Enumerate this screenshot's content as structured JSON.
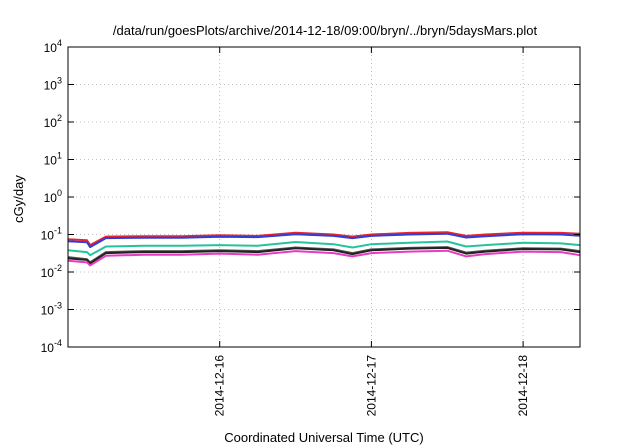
{
  "chart_data": {
    "type": "line",
    "title": "/data/run/goesPlots/archive/2014-12-18/09:00/bryn/../bryn/5daysMars.plot",
    "xlabel": "Coordinated Universal Time (UTC)",
    "ylabel": "cGy/day",
    "y_scale": "log",
    "ylim": [
      0.0001,
      10000
    ],
    "xlim": [
      "2014-12-15 00:00",
      "2014-12-18 09:00"
    ],
    "y_ticks": [
      {
        "value": 0.0001,
        "base": "10",
        "exp": "-4"
      },
      {
        "value": 0.001,
        "base": "10",
        "exp": "-3"
      },
      {
        "value": 0.01,
        "base": "10",
        "exp": "-2"
      },
      {
        "value": 0.1,
        "base": "10",
        "exp": "-1"
      },
      {
        "value": 1,
        "base": "10",
        "exp": "0"
      },
      {
        "value": 10,
        "base": "10",
        "exp": "1"
      },
      {
        "value": 100,
        "base": "10",
        "exp": "2"
      },
      {
        "value": 1000,
        "base": "10",
        "exp": "3"
      },
      {
        "value": 10000,
        "base": "10",
        "exp": "4"
      }
    ],
    "x_ticks": [
      {
        "value": "2014-12-16 00:00",
        "label": "2014-12-16"
      },
      {
        "value": "2014-12-17 00:00",
        "label": "2014-12-17"
      },
      {
        "value": "2014-12-18 00:00",
        "label": "2014-12-18"
      }
    ],
    "grid": true,
    "legend": "none",
    "x": [
      "2014-12-15 00:00",
      "2014-12-15 03:00",
      "2014-12-15 03:30",
      "2014-12-15 06:00",
      "2014-12-15 12:00",
      "2014-12-15 18:00",
      "2014-12-16 00:00",
      "2014-12-16 06:00",
      "2014-12-16 12:00",
      "2014-12-16 18:00",
      "2014-12-16 21:00",
      "2014-12-17 00:00",
      "2014-12-17 06:00",
      "2014-12-17 12:00",
      "2014-12-17 15:00",
      "2014-12-17 18:00",
      "2014-12-18 00:00",
      "2014-12-18 06:00",
      "2014-12-18 09:00"
    ],
    "series": [
      {
        "color": "#e8242a",
        "values": [
          0.075,
          0.07,
          0.052,
          0.088,
          0.09,
          0.09,
          0.095,
          0.092,
          0.112,
          0.1,
          0.088,
          0.1,
          0.11,
          0.115,
          0.092,
          0.1,
          0.112,
          0.11,
          0.105
        ]
      },
      {
        "color": "#2f3ed8",
        "values": [
          0.066,
          0.062,
          0.046,
          0.08,
          0.082,
          0.082,
          0.087,
          0.085,
          0.102,
          0.092,
          0.08,
          0.092,
          0.1,
          0.105,
          0.083,
          0.09,
          0.102,
          0.1,
          0.093
        ]
      },
      {
        "color": "#26c39b",
        "values": [
          0.038,
          0.034,
          0.028,
          0.048,
          0.05,
          0.05,
          0.052,
          0.05,
          0.063,
          0.055,
          0.045,
          0.055,
          0.06,
          0.065,
          0.048,
          0.052,
          0.06,
          0.058,
          0.052
        ]
      },
      {
        "color": "#555555",
        "values": [
          0.025,
          0.022,
          0.018,
          0.034,
          0.036,
          0.036,
          0.038,
          0.036,
          0.045,
          0.04,
          0.032,
          0.04,
          0.044,
          0.046,
          0.033,
          0.037,
          0.043,
          0.042,
          0.036
        ]
      },
      {
        "color": "#222222",
        "values": [
          0.023,
          0.021,
          0.017,
          0.032,
          0.034,
          0.034,
          0.036,
          0.034,
          0.043,
          0.038,
          0.03,
          0.038,
          0.042,
          0.044,
          0.031,
          0.035,
          0.041,
          0.04,
          0.034
        ]
      },
      {
        "color": "#e83bc4",
        "values": [
          0.02,
          0.018,
          0.015,
          0.027,
          0.029,
          0.029,
          0.031,
          0.029,
          0.036,
          0.032,
          0.026,
          0.032,
          0.035,
          0.037,
          0.026,
          0.03,
          0.035,
          0.034,
          0.028
        ]
      }
    ]
  }
}
